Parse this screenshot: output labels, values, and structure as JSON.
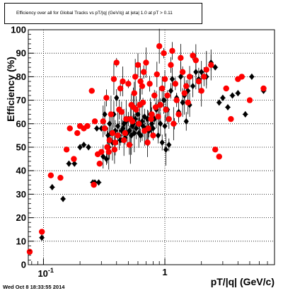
{
  "title": "Efficiency over all for Global Tracks vs pT/|q| (GeV/q) at |eta| 1.0 at pT > 0.11",
  "footer": "Wed Oct  8 18:33:55 2014",
  "chart_data": {
    "type": "scatter",
    "title": "Efficiency over all for Global Tracks vs pT/|q| (GeV/q) at |eta| 1.0 at pT > 0.11",
    "xlabel": "pT/|q| (GeV/c)",
    "ylabel": "Efficiency (%)",
    "x_scale": "log",
    "xlim": [
      0.075,
      8.0
    ],
    "ylim": [
      0,
      100
    ],
    "x_tick_labels": [
      "10^-1",
      "1"
    ],
    "y_ticks": [
      0,
      10,
      20,
      30,
      40,
      50,
      60,
      70,
      80,
      90,
      100
    ],
    "grid": true,
    "legend": "none",
    "colors": {
      "series_red": "#ff0000",
      "series_black": "#000000"
    },
    "series": [
      {
        "color": "red",
        "points": [
          [
            0.077,
            5.5
          ],
          [
            0.097,
            14
          ],
          [
            0.115,
            38
          ],
          [
            0.138,
            37
          ],
          [
            0.155,
            49
          ],
          [
            0.165,
            58
          ],
          [
            0.178,
            45
          ],
          [
            0.19,
            56
          ],
          [
            0.2,
            59
          ],
          [
            0.215,
            58
          ],
          [
            0.23,
            59
          ],
          [
            0.25,
            74
          ],
          [
            0.26,
            34
          ],
          [
            0.265,
            61
          ],
          [
            0.28,
            47
          ],
          [
            0.29,
            43
          ],
          [
            0.3,
            48
          ],
          [
            0.31,
            61
          ],
          [
            0.32,
            58
          ],
          [
            0.33,
            71
          ],
          [
            0.335,
            50
          ],
          [
            0.345,
            48
          ],
          [
            0.35,
            53
          ],
          [
            0.36,
            64
          ],
          [
            0.37,
            56
          ],
          [
            0.38,
            79
          ],
          [
            0.385,
            49
          ],
          [
            0.39,
            52
          ],
          [
            0.4,
            86
          ],
          [
            0.41,
            55
          ],
          [
            0.42,
            66
          ],
          [
            0.43,
            75
          ],
          [
            0.44,
            65
          ],
          [
            0.45,
            78
          ],
          [
            0.46,
            53
          ],
          [
            0.47,
            56
          ],
          [
            0.48,
            62
          ],
          [
            0.5,
            77
          ],
          [
            0.51,
            51
          ],
          [
            0.52,
            62
          ],
          [
            0.53,
            68
          ],
          [
            0.54,
            61
          ],
          [
            0.55,
            67
          ],
          [
            0.56,
            73
          ],
          [
            0.57,
            80
          ],
          [
            0.58,
            66
          ],
          [
            0.6,
            85
          ],
          [
            0.61,
            60
          ],
          [
            0.62,
            68
          ],
          [
            0.63,
            78
          ],
          [
            0.65,
            76
          ],
          [
            0.66,
            69
          ],
          [
            0.67,
            82
          ],
          [
            0.68,
            57
          ],
          [
            0.7,
            86
          ],
          [
            0.72,
            52
          ],
          [
            0.73,
            58
          ],
          [
            0.75,
            77
          ],
          [
            0.77,
            62
          ],
          [
            0.78,
            64
          ],
          [
            0.8,
            55
          ],
          [
            0.82,
            72
          ],
          [
            0.84,
            67
          ],
          [
            0.86,
            81
          ],
          [
            0.88,
            63
          ],
          [
            0.9,
            93
          ],
          [
            0.92,
            68
          ],
          [
            0.95,
            75
          ],
          [
            0.98,
            90
          ],
          [
            1.0,
            79
          ],
          [
            1.02,
            66
          ],
          [
            1.05,
            72
          ],
          [
            1.08,
            62
          ],
          [
            1.12,
            85
          ],
          [
            1.15,
            91
          ],
          [
            1.18,
            60
          ],
          [
            1.22,
            77
          ],
          [
            1.25,
            70
          ],
          [
            1.3,
            64
          ],
          [
            1.35,
            88
          ],
          [
            1.4,
            82
          ],
          [
            1.45,
            73
          ],
          [
            1.5,
            76
          ],
          [
            1.55,
            69
          ],
          [
            1.6,
            80
          ],
          [
            1.7,
            89
          ],
          [
            1.8,
            87
          ],
          [
            1.9,
            78
          ],
          [
            2.0,
            74
          ],
          [
            2.1,
            80
          ],
          [
            2.2,
            83
          ],
          [
            2.4,
            85
          ],
          [
            2.6,
            49
          ],
          [
            2.8,
            46
          ],
          [
            3.2,
            75
          ],
          [
            3.5,
            62
          ],
          [
            4.0,
            79
          ],
          [
            4.3,
            80
          ],
          [
            5.0,
            70
          ],
          [
            6.5,
            75
          ]
        ]
      },
      {
        "color": "black",
        "points": [
          [
            0.097,
            11.5
          ],
          [
            0.118,
            33
          ],
          [
            0.145,
            28
          ],
          [
            0.162,
            43
          ],
          [
            0.18,
            43
          ],
          [
            0.2,
            50
          ],
          [
            0.215,
            51
          ],
          [
            0.235,
            50
          ],
          [
            0.255,
            35
          ],
          [
            0.265,
            35
          ],
          [
            0.275,
            58
          ],
          [
            0.285,
            35
          ],
          [
            0.3,
            58
          ],
          [
            0.31,
            46
          ],
          [
            0.32,
            64
          ],
          [
            0.33,
            45
          ],
          [
            0.34,
            55
          ],
          [
            0.345,
            50
          ],
          [
            0.35,
            60
          ],
          [
            0.36,
            56
          ],
          [
            0.37,
            52
          ],
          [
            0.38,
            64
          ],
          [
            0.39,
            57
          ],
          [
            0.4,
            71
          ],
          [
            0.41,
            59
          ],
          [
            0.42,
            55
          ],
          [
            0.43,
            53
          ],
          [
            0.44,
            57
          ],
          [
            0.45,
            58
          ],
          [
            0.46,
            60
          ],
          [
            0.47,
            54
          ],
          [
            0.48,
            61
          ],
          [
            0.49,
            56
          ],
          [
            0.5,
            62
          ],
          [
            0.51,
            57
          ],
          [
            0.52,
            51
          ],
          [
            0.53,
            55
          ],
          [
            0.54,
            59
          ],
          [
            0.55,
            60
          ],
          [
            0.56,
            56
          ],
          [
            0.57,
            62
          ],
          [
            0.58,
            58
          ],
          [
            0.6,
            64
          ],
          [
            0.61,
            56
          ],
          [
            0.62,
            60
          ],
          [
            0.63,
            55
          ],
          [
            0.65,
            61
          ],
          [
            0.66,
            59
          ],
          [
            0.68,
            63
          ],
          [
            0.7,
            58
          ],
          [
            0.72,
            62
          ],
          [
            0.74,
            57
          ],
          [
            0.76,
            64
          ],
          [
            0.78,
            60
          ],
          [
            0.8,
            58
          ],
          [
            0.82,
            62
          ],
          [
            0.85,
            66
          ],
          [
            0.88,
            55
          ],
          [
            0.9,
            68
          ],
          [
            0.92,
            60
          ],
          [
            0.95,
            52
          ],
          [
            0.98,
            70
          ],
          [
            1.0,
            59
          ],
          [
            1.02,
            49
          ],
          [
            1.05,
            66
          ],
          [
            1.08,
            51
          ],
          [
            1.12,
            74
          ],
          [
            1.15,
            79
          ],
          [
            1.2,
            60
          ],
          [
            1.25,
            71
          ],
          [
            1.3,
            65
          ],
          [
            1.35,
            80
          ],
          [
            1.4,
            69
          ],
          [
            1.45,
            72
          ],
          [
            1.5,
            61
          ],
          [
            1.55,
            74
          ],
          [
            1.6,
            68
          ],
          [
            1.7,
            76
          ],
          [
            1.8,
            82
          ],
          [
            1.9,
            79
          ],
          [
            2.0,
            82
          ],
          [
            2.2,
            80
          ],
          [
            2.4,
            86
          ],
          [
            2.6,
            84
          ],
          [
            2.8,
            69
          ],
          [
            3.0,
            71
          ],
          [
            3.3,
            67
          ],
          [
            3.6,
            72
          ],
          [
            4.0,
            73
          ],
          [
            4.6,
            64
          ],
          [
            5.2,
            80
          ],
          [
            6.5,
            74
          ]
        ]
      }
    ]
  }
}
